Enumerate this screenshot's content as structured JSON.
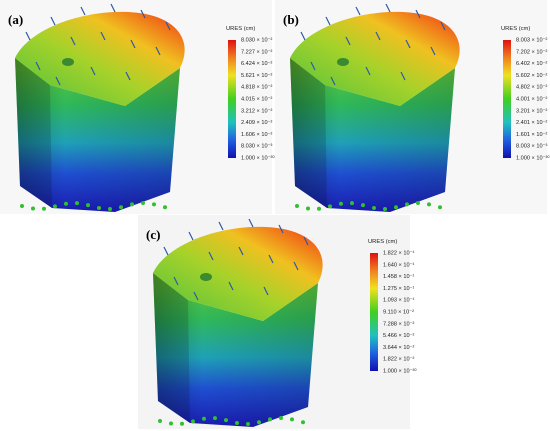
{
  "panels": [
    {
      "label": "(a)",
      "legend_title": "URES (cm)",
      "legend_ticks": [
        "8.030 × 10⁻²",
        "7.227 × 10⁻²",
        "6.424 × 10⁻²",
        "5.621 × 10⁻²",
        "4.818 × 10⁻²",
        "4.015 × 10⁻²",
        "3.212 × 10⁻²",
        "2.409 × 10⁻²",
        "1.606 × 10⁻²",
        "8.030 × 10⁻³",
        "1.000 × 10⁻³⁰"
      ]
    },
    {
      "label": "(b)",
      "legend_title": "URES (cm)",
      "legend_ticks": [
        "8.003 × 10⁻²",
        "7.202 × 10⁻²",
        "6.402 × 10⁻²",
        "5.602 × 10⁻²",
        "4.802 × 10⁻²",
        "4.001 × 10⁻²",
        "3.201 × 10⁻²",
        "2.401 × 10⁻²",
        "1.601 × 10⁻²",
        "8.003 × 10⁻³",
        "1.000 × 10⁻³⁰"
      ]
    },
    {
      "label": "(c)",
      "legend_title": "URES (cm)",
      "legend_ticks": [
        "1.822 × 10⁻¹",
        "1.640 × 10⁻¹",
        "1.458 × 10⁻¹",
        "1.275 × 10⁻¹",
        "1.093 × 10⁻¹",
        "9.110 × 10⁻²",
        "7.288 × 10⁻²",
        "5.466 × 10⁻²",
        "3.644 × 10⁻²",
        "1.822 × 10⁻²",
        "1.000 × 10⁻³⁰"
      ]
    }
  ]
}
